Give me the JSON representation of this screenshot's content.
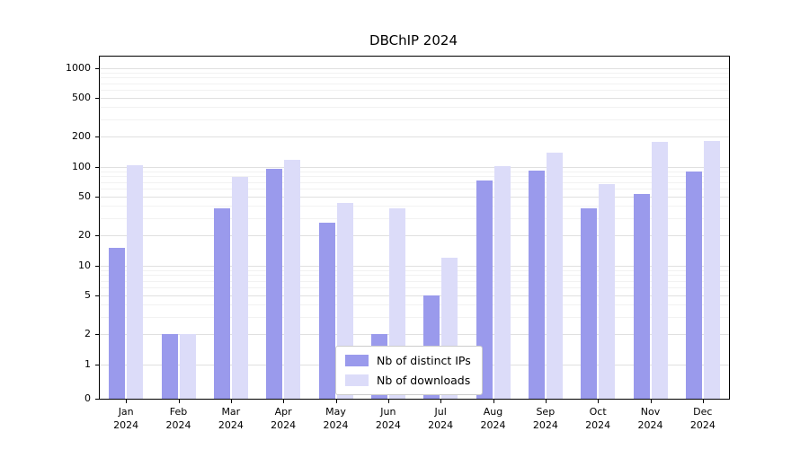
{
  "chart_data": {
    "type": "bar",
    "title": "DBChIP 2024",
    "categories": [
      "Jan 2024",
      "Feb 2024",
      "Mar 2024",
      "Apr 2024",
      "May 2024",
      "Jun 2024",
      "Jul 2024",
      "Aug 2024",
      "Sep 2024",
      "Oct 2024",
      "Nov 2024",
      "Dec 2024"
    ],
    "series": [
      {
        "name": "Nb of distinct IPs",
        "color": "#9a9aec",
        "values": [
          15,
          2,
          38,
          95,
          27,
          2,
          5,
          73,
          92,
          38,
          53,
          89
        ]
      },
      {
        "name": "Nb of downloads",
        "color": "#dcdcf9",
        "values": [
          104,
          2,
          79,
          117,
          43,
          38,
          12,
          101,
          137,
          66,
          178,
          183
        ]
      }
    ],
    "yticks": [
      0,
      1,
      2,
      5,
      10,
      20,
      50,
      100,
      200,
      500,
      1000
    ],
    "scale": "symlog",
    "ylim": [
      0,
      1300
    ],
    "grid": true,
    "legend_position": "lower center",
    "grid_color_major": "#e0e0e0",
    "grid_color_minor": "#f2f2f2"
  }
}
